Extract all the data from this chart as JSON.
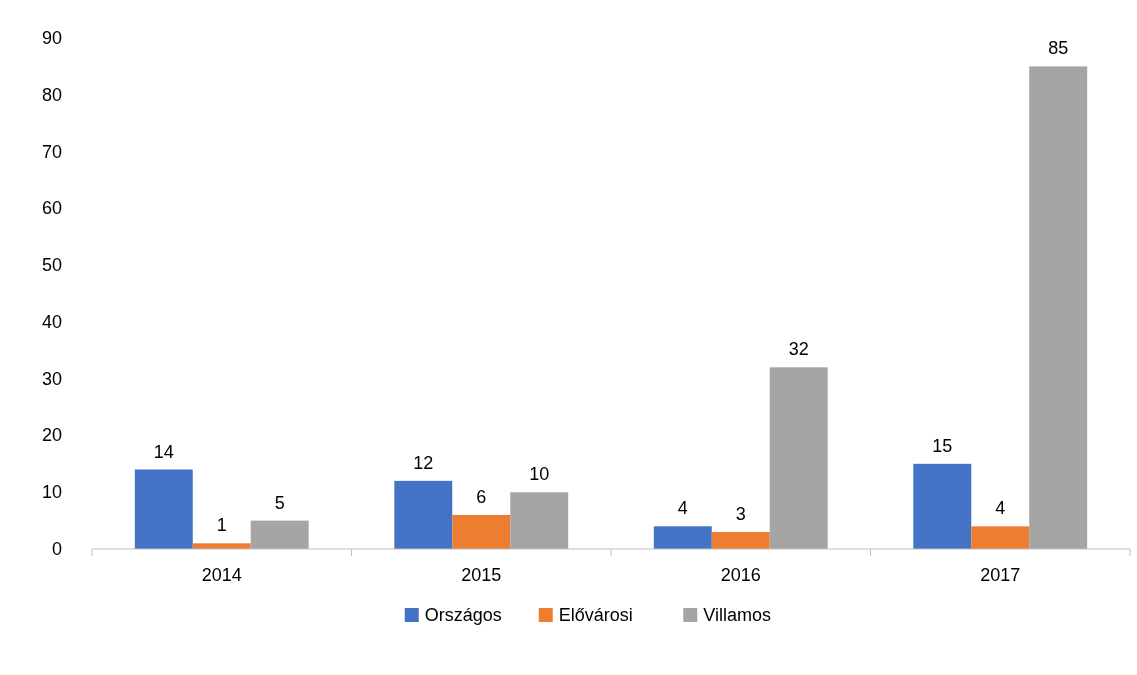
{
  "chart_data": {
    "type": "bar",
    "categories": [
      "2014",
      "2015",
      "2016",
      "2017"
    ],
    "series": [
      {
        "name": "Országos",
        "color": "#4472c4",
        "values": [
          14,
          12,
          4,
          15
        ]
      },
      {
        "name": "Elővárosi",
        "color": "#ed7d31",
        "values": [
          1,
          6,
          3,
          4
        ]
      },
      {
        "name": "Villamos",
        "color": "#a5a5a5",
        "values": [
          5,
          10,
          32,
          85
        ]
      }
    ],
    "ylim": [
      0,
      90
    ],
    "yticks": [
      0,
      10,
      20,
      30,
      40,
      50,
      60,
      70,
      80,
      90
    ],
    "data_labels": true,
    "legend": "bottom",
    "grid": false
  }
}
